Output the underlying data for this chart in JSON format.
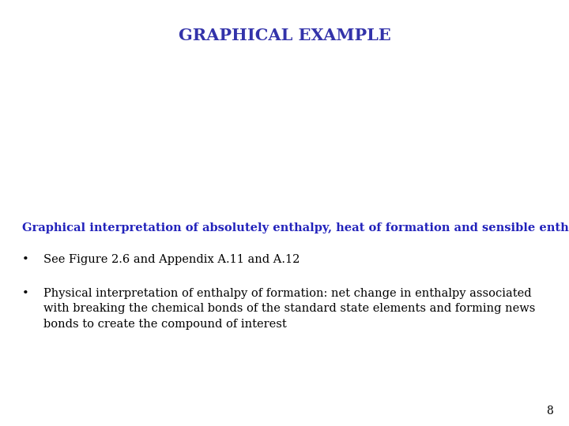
{
  "title": "GRAPHICAL EXAMPLE",
  "title_color": "#3333aa",
  "title_fontsize": 15,
  "subtitle": "Graphical interpretation of absolutely enthalpy, heat of formation and sensible enthalpy",
  "subtitle_color": "#2222bb",
  "subtitle_fontsize": 10.5,
  "bullet1": "See Figure 2.6 and Appendix A.11 and A.12",
  "bullet2_line1": "Physical interpretation of enthalpy of formation: net change in enthalpy associated",
  "bullet2_line2": "with breaking the chemical bonds of the standard state elements and forming news",
  "bullet2_line3": "bonds to create the compound of interest",
  "bullet_color": "#000000",
  "bullet_fontsize": 10.5,
  "page_number": "8",
  "background_color": "#ffffff"
}
